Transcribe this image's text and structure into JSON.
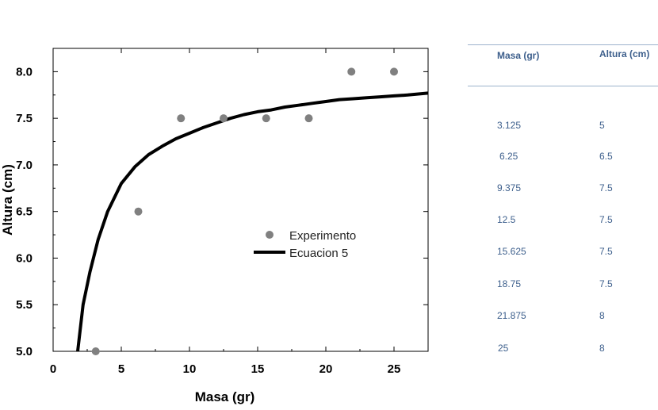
{
  "chart_data": {
    "type": "scatter",
    "title": "",
    "xlabel": "Masa (gr)",
    "ylabel": "Altura (cm)",
    "xlim": [
      0,
      27.5
    ],
    "ylim": [
      5.0,
      8.25
    ],
    "x_ticks": [
      "0",
      "5",
      "10",
      "15",
      "20",
      "25"
    ],
    "y_ticks": [
      "5.0",
      "5.5",
      "6.0",
      "6.5",
      "7.0",
      "7.5",
      "8.0"
    ],
    "legend_position": "center-right",
    "series": [
      {
        "name": "Experimento",
        "kind": "scatter",
        "color": "#808080",
        "x": [
          3.125,
          6.25,
          9.375,
          12.5,
          15.625,
          18.75,
          21.875,
          25
        ],
        "y": [
          5.0,
          6.5,
          7.5,
          7.5,
          7.5,
          7.5,
          8.0,
          8.0
        ]
      },
      {
        "name": "Ecuacion 5",
        "kind": "line",
        "color": "#000000",
        "x": [
          1.8,
          2.2,
          2.7,
          3.3,
          4.0,
          5.0,
          6.0,
          7.0,
          8.0,
          9.0,
          10.0,
          11.0,
          12.0,
          13.0,
          14.0,
          15.0,
          16.0,
          17.0,
          18.0,
          19.0,
          20.0,
          21.0,
          22.0,
          23.0,
          24.0,
          25.0,
          26.0,
          27.5
        ],
        "y": [
          5.0,
          5.5,
          5.85,
          6.2,
          6.5,
          6.8,
          6.98,
          7.11,
          7.2,
          7.28,
          7.34,
          7.4,
          7.45,
          7.5,
          7.54,
          7.57,
          7.59,
          7.62,
          7.64,
          7.66,
          7.68,
          7.7,
          7.71,
          7.72,
          7.73,
          7.74,
          7.75,
          7.77
        ]
      }
    ]
  },
  "table": {
    "headers": [
      "Masa (gr)",
      "Altura (cm)"
    ],
    "rows": [
      [
        "3.125",
        "5"
      ],
      [
        "6.25",
        "6.5"
      ],
      [
        "9.375",
        "7.5"
      ],
      [
        "12.5",
        "7.5"
      ],
      [
        "15.625",
        "7.5"
      ],
      [
        "18.75",
        "7.5"
      ],
      [
        "21.875",
        "8"
      ],
      [
        "25",
        "8"
      ]
    ]
  }
}
